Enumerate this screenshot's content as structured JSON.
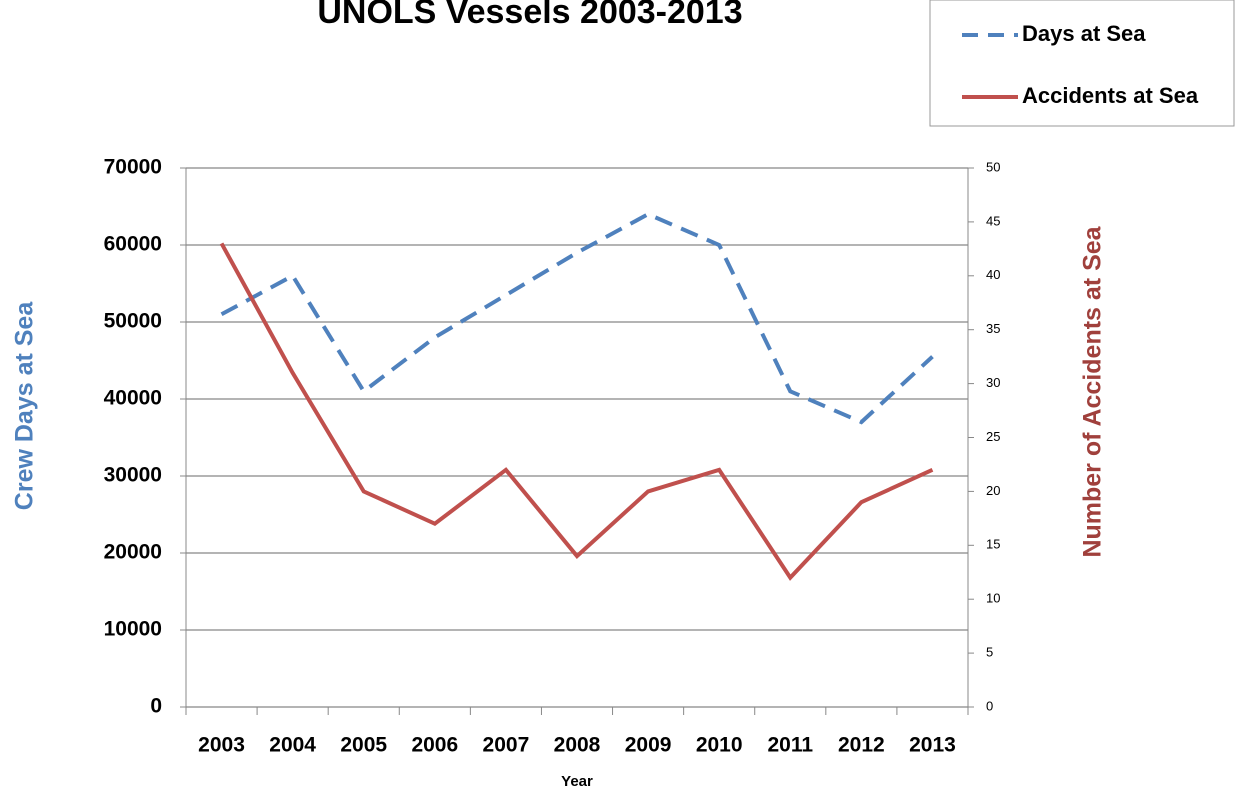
{
  "chart_data": {
    "type": "line",
    "title": "UNOLS Vessels 2003-2013",
    "x_label": "Year",
    "y_label": "Crew Days at Sea",
    "y2_label": "Number of Accidents at Sea",
    "categories": [
      "2003",
      "2004",
      "2005",
      "2006",
      "2007",
      "2008",
      "2009",
      "2010",
      "2011",
      "2012",
      "2013"
    ],
    "series": [
      {
        "name": "Days at Sea",
        "color": "#4f81bd",
        "dash": true,
        "values": [
          51000,
          56000,
          41000,
          48000,
          53500,
          59000,
          64000,
          60000,
          41000,
          37000,
          45500
        ]
      },
      {
        "name": "Accidents at Sea",
        "color": "#c0504d",
        "axis": "y2",
        "values": [
          43,
          31,
          20,
          17,
          22,
          14,
          20,
          22,
          12,
          19,
          22
        ]
      }
    ],
    "ylim": [
      0,
      70000
    ],
    "yticks": [
      0,
      10000,
      20000,
      30000,
      40000,
      50000,
      60000,
      70000
    ],
    "y2lim": [
      0,
      50
    ],
    "y2ticks": [
      0,
      5,
      10,
      15,
      20,
      25,
      30,
      35,
      40,
      45,
      50
    ],
    "grid": true,
    "legend": "top-right"
  }
}
